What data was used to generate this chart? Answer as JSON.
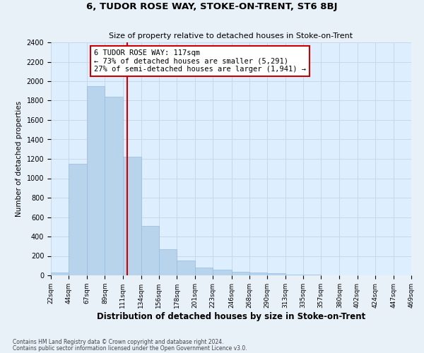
{
  "title": "6, TUDOR ROSE WAY, STOKE-ON-TRENT, ST6 8BJ",
  "subtitle": "Size of property relative to detached houses in Stoke-on-Trent",
  "xlabel": "Distribution of detached houses by size in Stoke-on-Trent",
  "ylabel": "Number of detached properties",
  "footnote1": "Contains HM Land Registry data © Crown copyright and database right 2024.",
  "footnote2": "Contains public sector information licensed under the Open Government Licence v3.0.",
  "annotation_line1": "6 TUDOR ROSE WAY: 117sqm",
  "annotation_line2": "← 73% of detached houses are smaller (5,291)",
  "annotation_line3": "27% of semi-detached houses are larger (1,941) →",
  "xtick_labels": [
    "22sqm",
    "44sqm",
    "67sqm",
    "89sqm",
    "111sqm",
    "134sqm",
    "156sqm",
    "178sqm",
    "201sqm",
    "223sqm",
    "246sqm",
    "268sqm",
    "290sqm",
    "313sqm",
    "335sqm",
    "357sqm",
    "380sqm",
    "402sqm",
    "424sqm",
    "447sqm",
    "469sqm"
  ],
  "bar_left_edges": [
    22,
    44,
    67,
    89,
    111,
    134,
    156,
    178,
    201,
    223,
    246,
    268,
    290,
    313,
    335,
    357,
    380,
    402,
    424,
    447
  ],
  "bar_widths": [
    22,
    23,
    22,
    22,
    23,
    22,
    22,
    23,
    22,
    23,
    22,
    22,
    23,
    22,
    22,
    23,
    22,
    22,
    23,
    22
  ],
  "bar_heights": [
    30,
    1150,
    1950,
    1840,
    1220,
    510,
    270,
    150,
    80,
    55,
    40,
    30,
    20,
    10,
    5,
    3,
    2,
    2,
    1,
    1
  ],
  "bar_color": "#b8d4ec",
  "bar_edge_color": "#99bbdd",
  "vline_x": 117,
  "vline_color": "#cc0000",
  "annotation_box_color": "#cc0000",
  "ylim": [
    0,
    2400
  ],
  "yticks": [
    0,
    200,
    400,
    600,
    800,
    1000,
    1200,
    1400,
    1600,
    1800,
    2000,
    2200,
    2400
  ],
  "grid_color": "#c8d8e8",
  "background_color": "#e8f0f8",
  "plot_bg_color": "#ddeeff"
}
